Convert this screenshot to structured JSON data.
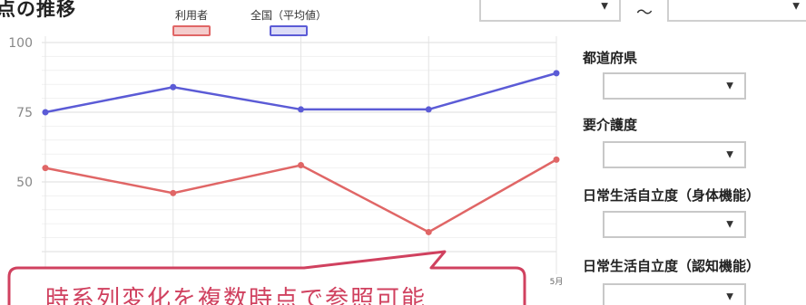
{
  "header": {
    "title_fragment": "点の推移"
  },
  "legend": [
    {
      "label": "利用者",
      "color": "#e06666"
    },
    {
      "label": "全国（平均値）",
      "color": "#5b5bd6"
    }
  ],
  "period": {
    "separator": "～",
    "start_value": "",
    "end_value": ""
  },
  "filters": [
    {
      "label": "都道府県",
      "value": ""
    },
    {
      "label": "要介護度",
      "value": ""
    },
    {
      "label": "日常生活自立度（身体機能）",
      "value": ""
    },
    {
      "label": "日常生活自立度（認知機能）",
      "value": ""
    }
  ],
  "chart_data": {
    "type": "line",
    "y_ticks": [
      "100",
      "75",
      "50"
    ],
    "x_tick_visible": "5月",
    "ylim": [
      25,
      100
    ],
    "grid": true,
    "legend_position": "top",
    "series": [
      {
        "name": "利用者",
        "color": "#e06666",
        "values": [
          55,
          46,
          56,
          32,
          58
        ]
      },
      {
        "name": "全国（平均値）",
        "color": "#5b5bd6",
        "values": [
          75,
          84,
          76,
          76,
          89
        ]
      }
    ]
  },
  "callout": {
    "text": "時系列変化を複数時点で参照可能",
    "color": "#d0415f"
  }
}
